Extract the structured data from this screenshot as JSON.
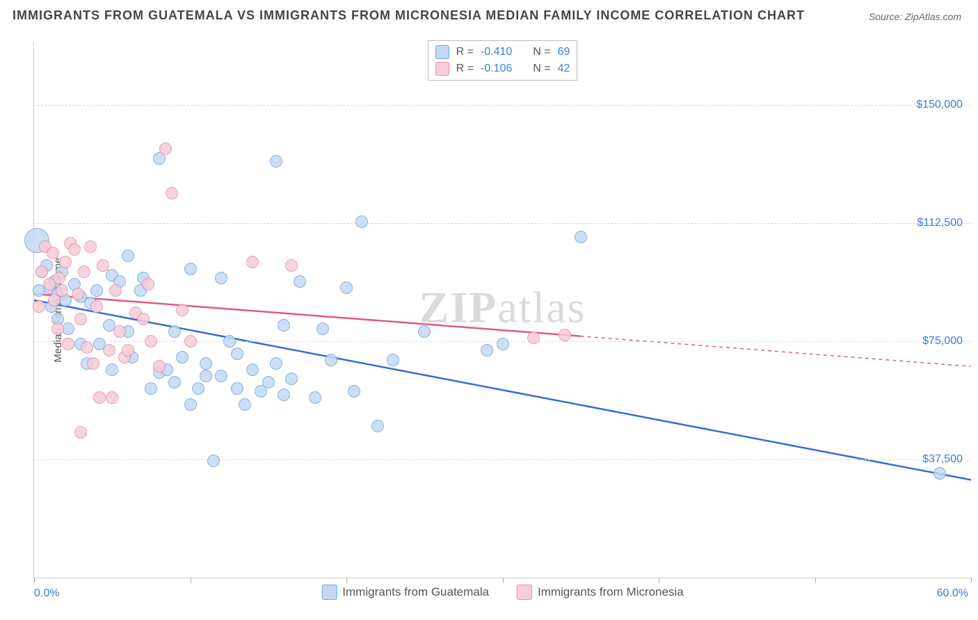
{
  "title": "IMMIGRANTS FROM GUATEMALA VS IMMIGRANTS FROM MICRONESIA MEDIAN FAMILY INCOME CORRELATION CHART",
  "source_prefix": "Source: ",
  "source_name": "ZipAtlas.com",
  "ylabel": "Median Family Income",
  "watermark": "ZIPatlas",
  "chart": {
    "type": "scatter",
    "xlim": [
      0,
      60
    ],
    "ylim": [
      0,
      170000
    ],
    "xtick_positions": [
      0,
      10,
      20,
      30,
      40,
      50,
      60
    ],
    "xmin_label": "0.0%",
    "xmax_label": "60.0%",
    "ygrid": [
      {
        "value": 37500,
        "label": "$37,500"
      },
      {
        "value": 75000,
        "label": "$75,000"
      },
      {
        "value": 112500,
        "label": "$112,500"
      },
      {
        "value": 150000,
        "label": "$150,000"
      }
    ],
    "background_color": "#ffffff",
    "grid_color": "#d8d8d8",
    "axis_color": "#cccccc",
    "tick_label_color": "#3b7dd8",
    "series": [
      {
        "key": "guatemala",
        "label": "Immigrants from Guatemala",
        "R": "-0.410",
        "N": "69",
        "fill": "#c3d9f3",
        "stroke": "#6fa3e0",
        "line_color": "#2f6fd0",
        "marker_radius": 9,
        "trend": {
          "x1": 0,
          "y1": 88000,
          "x2": 60,
          "y2": 31000,
          "solid_end_x": 60
        },
        "points": [
          {
            "x": 0.2,
            "y": 107000,
            "r": 18
          },
          {
            "x": 0.3,
            "y": 91000
          },
          {
            "x": 0.5,
            "y": 97000
          },
          {
            "x": 0.8,
            "y": 99000
          },
          {
            "x": 1.0,
            "y": 92000
          },
          {
            "x": 1.1,
            "y": 86000
          },
          {
            "x": 1.3,
            "y": 94000
          },
          {
            "x": 1.5,
            "y": 90000
          },
          {
            "x": 1.5,
            "y": 82000
          },
          {
            "x": 1.8,
            "y": 97000
          },
          {
            "x": 2.0,
            "y": 88000
          },
          {
            "x": 2.2,
            "y": 79000
          },
          {
            "x": 2.6,
            "y": 93000
          },
          {
            "x": 3.0,
            "y": 89000
          },
          {
            "x": 3.0,
            "y": 74000
          },
          {
            "x": 3.4,
            "y": 68000
          },
          {
            "x": 3.6,
            "y": 87000
          },
          {
            "x": 4.0,
            "y": 91000
          },
          {
            "x": 4.2,
            "y": 74000
          },
          {
            "x": 4.8,
            "y": 80000
          },
          {
            "x": 5.0,
            "y": 66000
          },
          {
            "x": 5.0,
            "y": 96000
          },
          {
            "x": 5.5,
            "y": 94000
          },
          {
            "x": 6.0,
            "y": 102000
          },
          {
            "x": 6.0,
            "y": 78000
          },
          {
            "x": 6.3,
            "y": 70000
          },
          {
            "x": 6.8,
            "y": 91000
          },
          {
            "x": 7.0,
            "y": 95000
          },
          {
            "x": 7.5,
            "y": 60000
          },
          {
            "x": 8.0,
            "y": 133000
          },
          {
            "x": 8.0,
            "y": 65000
          },
          {
            "x": 8.5,
            "y": 66000
          },
          {
            "x": 9.0,
            "y": 62000
          },
          {
            "x": 9.0,
            "y": 78000
          },
          {
            "x": 9.5,
            "y": 70000
          },
          {
            "x": 10.0,
            "y": 98000
          },
          {
            "x": 10.0,
            "y": 55000
          },
          {
            "x": 10.5,
            "y": 60000
          },
          {
            "x": 11.0,
            "y": 68000
          },
          {
            "x": 11.0,
            "y": 64000
          },
          {
            "x": 11.5,
            "y": 37000
          },
          {
            "x": 12.0,
            "y": 64000
          },
          {
            "x": 12.0,
            "y": 95000
          },
          {
            "x": 12.5,
            "y": 75000
          },
          {
            "x": 13.0,
            "y": 60000
          },
          {
            "x": 13.0,
            "y": 71000
          },
          {
            "x": 13.5,
            "y": 55000
          },
          {
            "x": 14.0,
            "y": 66000
          },
          {
            "x": 14.5,
            "y": 59000
          },
          {
            "x": 15.0,
            "y": 62000
          },
          {
            "x": 15.5,
            "y": 68000
          },
          {
            "x": 15.5,
            "y": 132000
          },
          {
            "x": 16.0,
            "y": 58000
          },
          {
            "x": 16.0,
            "y": 80000
          },
          {
            "x": 16.5,
            "y": 63000
          },
          {
            "x": 17.0,
            "y": 94000
          },
          {
            "x": 18.0,
            "y": 57000
          },
          {
            "x": 18.5,
            "y": 79000
          },
          {
            "x": 19.0,
            "y": 69000
          },
          {
            "x": 20.0,
            "y": 92000
          },
          {
            "x": 20.5,
            "y": 59000
          },
          {
            "x": 21.0,
            "y": 113000
          },
          {
            "x": 22.0,
            "y": 48000
          },
          {
            "x": 23.0,
            "y": 69000
          },
          {
            "x": 25.0,
            "y": 78000
          },
          {
            "x": 29.0,
            "y": 72000
          },
          {
            "x": 30.0,
            "y": 74000
          },
          {
            "x": 35.0,
            "y": 108000
          },
          {
            "x": 58.0,
            "y": 33000
          }
        ]
      },
      {
        "key": "micronesia",
        "label": "Immigrants from Micronesia",
        "R": "-0.106",
        "N": "42",
        "fill": "#f6cdd8",
        "stroke": "#e98ba5",
        "line_color": "#e05a84",
        "marker_radius": 9,
        "trend": {
          "x1": 0,
          "y1": 90000,
          "x2": 60,
          "y2": 67000,
          "solid_end_x": 35
        },
        "points": [
          {
            "x": 0.3,
            "y": 86000
          },
          {
            "x": 0.5,
            "y": 97000
          },
          {
            "x": 0.7,
            "y": 105000
          },
          {
            "x": 1.0,
            "y": 93000
          },
          {
            "x": 1.2,
            "y": 103000
          },
          {
            "x": 1.3,
            "y": 88000
          },
          {
            "x": 1.5,
            "y": 79000
          },
          {
            "x": 1.6,
            "y": 95000
          },
          {
            "x": 1.8,
            "y": 91000
          },
          {
            "x": 2.0,
            "y": 100000
          },
          {
            "x": 2.2,
            "y": 74000
          },
          {
            "x": 2.3,
            "y": 106000
          },
          {
            "x": 2.6,
            "y": 104000
          },
          {
            "x": 2.8,
            "y": 90000
          },
          {
            "x": 3.0,
            "y": 82000
          },
          {
            "x": 3.0,
            "y": 46000
          },
          {
            "x": 3.2,
            "y": 97000
          },
          {
            "x": 3.4,
            "y": 73000
          },
          {
            "x": 3.6,
            "y": 105000
          },
          {
            "x": 3.8,
            "y": 68000
          },
          {
            "x": 4.0,
            "y": 86000
          },
          {
            "x": 4.2,
            "y": 57000
          },
          {
            "x": 4.4,
            "y": 99000
          },
          {
            "x": 4.8,
            "y": 72000
          },
          {
            "x": 5.0,
            "y": 57000
          },
          {
            "x": 5.2,
            "y": 91000
          },
          {
            "x": 5.5,
            "y": 78000
          },
          {
            "x": 5.8,
            "y": 70000
          },
          {
            "x": 6.0,
            "y": 72000
          },
          {
            "x": 6.5,
            "y": 84000
          },
          {
            "x": 7.0,
            "y": 82000
          },
          {
            "x": 7.3,
            "y": 93000
          },
          {
            "x": 7.5,
            "y": 75000
          },
          {
            "x": 8.0,
            "y": 67000
          },
          {
            "x": 8.4,
            "y": 136000
          },
          {
            "x": 8.8,
            "y": 122000
          },
          {
            "x": 9.5,
            "y": 85000
          },
          {
            "x": 10.0,
            "y": 75000
          },
          {
            "x": 14.0,
            "y": 100000
          },
          {
            "x": 16.5,
            "y": 99000
          },
          {
            "x": 32.0,
            "y": 76000
          },
          {
            "x": 34.0,
            "y": 77000
          }
        ]
      }
    ]
  },
  "legend_labels": {
    "R": "R =",
    "N": "N ="
  }
}
